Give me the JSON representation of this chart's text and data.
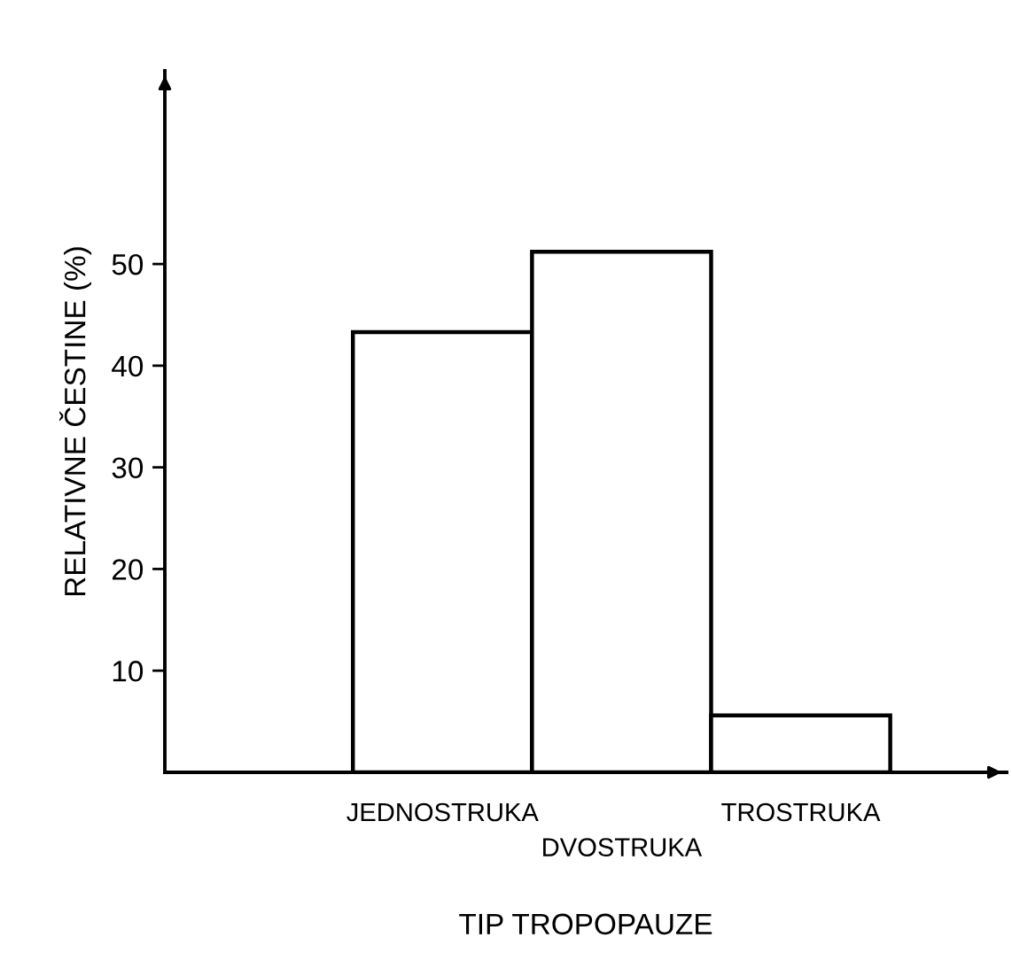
{
  "chart_data": {
    "type": "bar",
    "xlabel": "TIP TROPOPAUZE",
    "ylabel": "RELATIVNE ČESTINE (%)",
    "categories": [
      "JEDNOSTRUKA",
      "DVOSTRUKA",
      "TROSTRUKA"
    ],
    "values": [
      43.3,
      51.2,
      5.6
    ],
    "color": "#ffffff",
    "ylim": [
      0,
      69
    ],
    "yticks": [
      10,
      20,
      30,
      40,
      50
    ],
    "grid": false,
    "legend": false
  }
}
